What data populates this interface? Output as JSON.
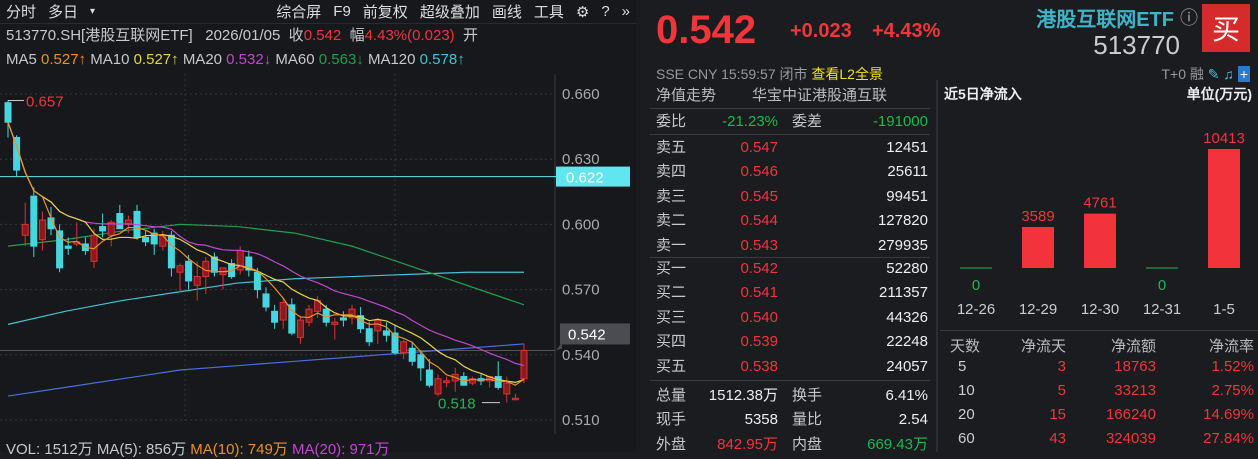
{
  "toolbar": {
    "items": [
      "分时",
      "多日",
      "综合屏",
      "F9",
      "前复权",
      "超级叠加",
      "画线",
      "工具"
    ]
  },
  "info": {
    "symbol": "513770.SH[港股互联网ETF]",
    "date": "2026/01/05",
    "close_label": "收",
    "close": "0.542",
    "range_label": "幅",
    "range": "4.43%(0.023)",
    "open_label": "开"
  },
  "ma": [
    {
      "label": "MA5",
      "value": "0.527↑",
      "color": "#e8912c"
    },
    {
      "label": "MA10",
      "value": "0.527↑",
      "color": "#e6d54a"
    },
    {
      "label": "MA20",
      "value": "0.532↓",
      "color": "#c048d0"
    },
    {
      "label": "MA60",
      "value": "0.563↓",
      "color": "#1fa04a"
    },
    {
      "label": "MA120",
      "value": "0.578↑",
      "color": "#45c2d6"
    }
  ],
  "chart": {
    "yaxis": [
      "0.660",
      "0.630",
      "0.600",
      "0.570",
      "0.540",
      "0.510"
    ],
    "ymin": 0.505,
    "ymax": 0.665,
    "high_label": "0.657",
    "low_label": "0.518",
    "hline": "0.622",
    "current": "0.542",
    "candles": [
      [
        0.656,
        0.657,
        0.64,
        0.647
      ],
      [
        0.64,
        0.641,
        0.622,
        0.625
      ],
      [
        0.595,
        0.61,
        0.59,
        0.6
      ],
      [
        0.613,
        0.617,
        0.585,
        0.59
      ],
      [
        0.593,
        0.606,
        0.588,
        0.602
      ],
      [
        0.603,
        0.608,
        0.595,
        0.598
      ],
      [
        0.597,
        0.6,
        0.578,
        0.58
      ],
      [
        0.59,
        0.594,
        0.586,
        0.589
      ],
      [
        0.591,
        0.601,
        0.59,
        0.592
      ],
      [
        0.591,
        0.594,
        0.586,
        0.588
      ],
      [
        0.583,
        0.598,
        0.58,
        0.595
      ],
      [
        0.599,
        0.605,
        0.594,
        0.597
      ],
      [
        0.595,
        0.602,
        0.59,
        0.601
      ],
      [
        0.605,
        0.609,
        0.598,
        0.598
      ],
      [
        0.6,
        0.604,
        0.596,
        0.602
      ],
      [
        0.606,
        0.609,
        0.593,
        0.594
      ],
      [
        0.594,
        0.597,
        0.59,
        0.592
      ],
      [
        0.596,
        0.598,
        0.586,
        0.591
      ],
      [
        0.59,
        0.597,
        0.588,
        0.595
      ],
      [
        0.595,
        0.597,
        0.576,
        0.58
      ],
      [
        0.578,
        0.582,
        0.569,
        0.581
      ],
      [
        0.583,
        0.586,
        0.57,
        0.574
      ],
      [
        0.572,
        0.583,
        0.565,
        0.576
      ],
      [
        0.576,
        0.585,
        0.568,
        0.583
      ],
      [
        0.585,
        0.587,
        0.576,
        0.578
      ],
      [
        0.577,
        0.58,
        0.57,
        0.58
      ],
      [
        0.582,
        0.584,
        0.575,
        0.576
      ],
      [
        0.579,
        0.59,
        0.577,
        0.588
      ],
      [
        0.585,
        0.588,
        0.576,
        0.579
      ],
      [
        0.578,
        0.58,
        0.566,
        0.57
      ],
      [
        0.568,
        0.571,
        0.56,
        0.562
      ],
      [
        0.56,
        0.563,
        0.552,
        0.555
      ],
      [
        0.556,
        0.566,
        0.552,
        0.564
      ],
      [
        0.563,
        0.566,
        0.549,
        0.55
      ],
      [
        0.548,
        0.558,
        0.545,
        0.556
      ],
      [
        0.555,
        0.563,
        0.553,
        0.561
      ],
      [
        0.56,
        0.567,
        0.557,
        0.565
      ],
      [
        0.561,
        0.563,
        0.553,
        0.555
      ],
      [
        0.554,
        0.557,
        0.547,
        0.555
      ],
      [
        0.557,
        0.56,
        0.553,
        0.556
      ],
      [
        0.557,
        0.563,
        0.554,
        0.561
      ],
      [
        0.558,
        0.562,
        0.55,
        0.552
      ],
      [
        0.552,
        0.555,
        0.544,
        0.546
      ],
      [
        0.551,
        0.557,
        0.545,
        0.556
      ],
      [
        0.551,
        0.555,
        0.546,
        0.549
      ],
      [
        0.55,
        0.554,
        0.54,
        0.541
      ],
      [
        0.541,
        0.547,
        0.538,
        0.546
      ],
      [
        0.543,
        0.546,
        0.535,
        0.537
      ],
      [
        0.54,
        0.542,
        0.528,
        0.534
      ],
      [
        0.533,
        0.538,
        0.525,
        0.526
      ],
      [
        0.522,
        0.531,
        0.521,
        0.529
      ],
      [
        0.528,
        0.53,
        0.525,
        0.528
      ],
      [
        0.528,
        0.534,
        0.523,
        0.531
      ],
      [
        0.53,
        0.532,
        0.526,
        0.526
      ],
      [
        0.527,
        0.53,
        0.526,
        0.529
      ],
      [
        0.529,
        0.531,
        0.526,
        0.528
      ],
      [
        0.528,
        0.53,
        0.525,
        0.53
      ],
      [
        0.53,
        0.537,
        0.524,
        0.525
      ],
      [
        0.522,
        0.53,
        0.518,
        0.527
      ],
      [
        0.52,
        0.522,
        0.519,
        0.52
      ],
      [
        0.529,
        0.545,
        0.527,
        0.542
      ]
    ],
    "ma60": [
      0.59,
      0.593,
      0.597,
      0.6,
      0.599,
      0.596,
      0.59,
      0.581,
      0.572,
      0.563
    ],
    "ma120": [
      0.554,
      0.56,
      0.565,
      0.569,
      0.573,
      0.575,
      0.576,
      0.577,
      0.578,
      0.578
    ],
    "ma250": [
      0.521,
      0.525,
      0.529,
      0.533,
      0.535,
      0.537,
      0.539,
      0.541,
      0.543,
      0.545
    ],
    "colors": {
      "up": "#f0353b",
      "down": "#45d6e0",
      "ma5": "#e8912c",
      "ma10": "#e6d54a",
      "ma20": "#c048d0",
      "ma60": "#1fa04a",
      "ma120": "#45c2d6",
      "ma250": "#4a6ee0"
    }
  },
  "volume": {
    "text": "VOL: 1512万 MA(5): 856万",
    "ma10": "MA(10): 749万",
    "ma20": "MA(20): 971万"
  },
  "quote": {
    "price": "0.542",
    "change": "+0.023",
    "pct": "+4.43%",
    "name": "港股互联网ETF",
    "code": "513770",
    "buy": "买",
    "exchange": "SSE",
    "currency": "CNY",
    "time": "15:59:57",
    "status": "闭市",
    "l2": "查看L2全景",
    "t0": "T+0",
    "rong": "融",
    "nav_label": "净值走势",
    "index_name": "华宝中证港股通互联",
    "weibi_label": "委比",
    "weibi": "-21.23%",
    "weicha_label": "委差",
    "weicha": "-191000",
    "asks": [
      {
        "label": "卖五",
        "price": "0.547",
        "vol": "12451"
      },
      {
        "label": "卖四",
        "price": "0.546",
        "vol": "25611"
      },
      {
        "label": "卖三",
        "price": "0.545",
        "vol": "99451"
      },
      {
        "label": "卖二",
        "price": "0.544",
        "vol": "127820"
      },
      {
        "label": "卖一",
        "price": "0.543",
        "vol": "279935"
      }
    ],
    "bids": [
      {
        "label": "买一",
        "price": "0.542",
        "vol": "52280"
      },
      {
        "label": "买二",
        "price": "0.541",
        "vol": "211357"
      },
      {
        "label": "买三",
        "price": "0.540",
        "vol": "44326"
      },
      {
        "label": "买四",
        "price": "0.539",
        "vol": "22248"
      },
      {
        "label": "买五",
        "price": "0.538",
        "vol": "24057"
      }
    ],
    "stats": [
      {
        "l1": "总量",
        "v1": "1512.38万",
        "l2": "换手",
        "v2": "6.41%"
      },
      {
        "l1": "现手",
        "v1": "5358",
        "l2": "量比",
        "v2": "2.54"
      },
      {
        "l1": "外盘",
        "v1": "842.95万",
        "l2": "内盘",
        "v2": "669.43万"
      }
    ]
  },
  "flow": {
    "title": "近5日净流入",
    "unit": "单位(万元)",
    "chart_data": {
      "type": "bar",
      "categories": [
        "12-26",
        "12-29",
        "12-30",
        "12-31",
        "1-5"
      ],
      "values": [
        0,
        3589,
        4761,
        0,
        10413
      ],
      "labels": [
        "0",
        "3589",
        "4761",
        "0",
        "10413"
      ]
    },
    "table": {
      "headers": [
        "天数",
        "净流天",
        "净流额",
        "净流率"
      ],
      "rows": [
        [
          "5",
          "3",
          "18763",
          "1.52%"
        ],
        [
          "10",
          "5",
          "33213",
          "2.75%"
        ],
        [
          "20",
          "15",
          "166240",
          "14.69%"
        ],
        [
          "60",
          "43",
          "324039",
          "27.84%"
        ]
      ]
    }
  }
}
